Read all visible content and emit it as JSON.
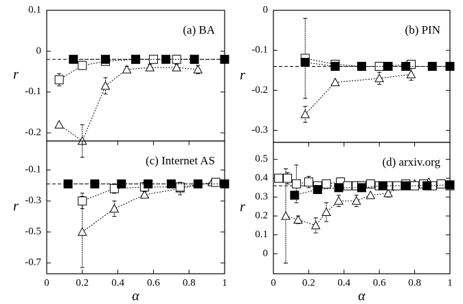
{
  "chart_data": [
    {
      "type": "scatter",
      "title": "(a) BA",
      "y_label": "r",
      "xlim": [
        0,
        1
      ],
      "ylim": [
        -0.22,
        0.1
      ],
      "yticks": [
        0.1,
        0,
        -0.1,
        -0.2
      ],
      "reference_line": -0.02,
      "series": [
        {
          "marker": "open-triangle",
          "x": [
            0.07,
            0.2,
            0.33,
            0.45,
            0.58,
            0.73,
            0.85
          ],
          "values": [
            -0.18,
            -0.22,
            -0.085,
            -0.045,
            -0.04,
            -0.04,
            -0.045
          ],
          "errors": [
            null,
            0.04,
            0.02,
            0.008,
            0.008,
            0.008,
            0.01
          ]
        },
        {
          "marker": "open-square",
          "x": [
            0.07,
            0.2,
            0.33,
            0.5,
            0.6,
            0.73,
            0.83
          ],
          "values": [
            -0.07,
            -0.035,
            -0.025,
            -0.02,
            -0.02,
            -0.02,
            -0.02
          ],
          "errors": [
            0.015,
            0.01,
            null,
            null,
            null,
            null,
            null
          ]
        },
        {
          "marker": "filled-square",
          "x": [
            0.15,
            0.33,
            0.5,
            0.67,
            0.83,
            1
          ],
          "values": [
            -0.02,
            -0.02,
            -0.02,
            -0.02,
            -0.02,
            -0.02
          ],
          "errors": [
            null,
            null,
            null,
            null,
            null,
            null
          ]
        }
      ]
    },
    {
      "type": "scatter",
      "title": "(b) PIN",
      "y_label": "r",
      "xlim": [
        0,
        1
      ],
      "ylim": [
        -0.33,
        0
      ],
      "yticks": [
        0,
        -0.1,
        -0.2,
        -0.3
      ],
      "reference_line": -0.14,
      "series": [
        {
          "marker": "open-triangle",
          "x": [
            0.18,
            0.35,
            0.6,
            0.78
          ],
          "values": [
            -0.26,
            -0.18,
            -0.17,
            -0.16
          ],
          "errors": [
            0.02,
            null,
            0.015,
            0.015
          ]
        },
        {
          "marker": "open-square",
          "x": [
            0.18,
            0.35,
            0.5,
            0.6,
            0.78
          ],
          "values": [
            -0.12,
            -0.135,
            -0.14,
            -0.14,
            -0.135
          ],
          "errors": [
            0.1,
            0.01,
            null,
            null,
            null
          ]
        },
        {
          "marker": "filled-square",
          "x": [
            0.18,
            0.35,
            0.5,
            0.65,
            0.75,
            0.9,
            1
          ],
          "values": [
            -0.13,
            -0.14,
            -0.14,
            -0.14,
            -0.14,
            -0.14,
            -0.14
          ],
          "errors": [
            null,
            null,
            null,
            null,
            null,
            null,
            null
          ]
        }
      ]
    },
    {
      "type": "scatter",
      "title": "(c) Internet AS",
      "x_label": "α",
      "y_label": "r",
      "xlim": [
        0,
        1
      ],
      "ylim": [
        -0.77,
        0.087
      ],
      "xticks": [
        0,
        0.2,
        0.4,
        0.6,
        0.8,
        1
      ],
      "yticks": [
        -0.1,
        -0.3,
        -0.5,
        -0.7
      ],
      "reference_line": -0.19,
      "series": [
        {
          "marker": "open-triangle",
          "x": [
            0.2,
            0.38,
            0.55,
            0.75,
            0.93
          ],
          "values": [
            -0.5,
            -0.35,
            -0.26,
            -0.22,
            -0.18
          ],
          "errors": [
            0.23,
            0.05,
            0.02,
            0.04,
            null
          ]
        },
        {
          "marker": "open-square",
          "x": [
            0.2,
            0.38,
            0.55,
            0.75,
            0.95
          ],
          "values": [
            -0.3,
            -0.22,
            -0.21,
            -0.21,
            -0.18
          ],
          "errors": [
            0.05,
            0.03,
            0.03,
            0.02,
            null
          ]
        },
        {
          "marker": "filled-square",
          "x": [
            0.12,
            0.27,
            0.42,
            0.57,
            0.7,
            0.85,
            1
          ],
          "values": [
            -0.19,
            -0.19,
            -0.19,
            -0.19,
            -0.19,
            -0.19,
            -0.19
          ],
          "errors": [
            null,
            null,
            null,
            null,
            null,
            null,
            null
          ]
        }
      ]
    },
    {
      "type": "scatter",
      "title": "(d) arxiv.org",
      "x_label": "α",
      "y_label": "r",
      "xlim": [
        0,
        1
      ],
      "ylim": [
        -0.106,
        0.59
      ],
      "xticks": [
        0,
        0.2,
        0.4,
        0.6,
        0.8,
        1
      ],
      "yticks": [
        0.5,
        0.4,
        0.3,
        0.2,
        0.1,
        0
      ],
      "reference_line": 0.36,
      "series": [
        {
          "marker": "open-triangle",
          "x": [
            0.07,
            0.14,
            0.24,
            0.3,
            0.37,
            0.47,
            0.55,
            0.65,
            0.73,
            0.8,
            0.88,
            0.95
          ],
          "values": [
            0.2,
            0.18,
            0.15,
            0.22,
            0.28,
            0.28,
            0.31,
            0.32,
            0.36,
            0.37,
            0.38,
            0.37
          ],
          "errors": [
            0.25,
            0.02,
            0.04,
            0.05,
            0.03,
            0.03,
            null,
            0.02,
            null,
            null,
            null,
            null
          ]
        },
        {
          "marker": "open-square",
          "x": [
            0.03,
            0.08,
            0.13,
            0.2,
            0.25,
            0.3,
            0.38,
            0.42,
            0.47,
            0.5,
            0.55,
            0.6,
            0.65,
            0.7,
            0.75,
            0.8,
            0.85,
            0.9,
            0.95,
            1
          ],
          "values": [
            0.4,
            0.4,
            0.37,
            0.38,
            0.36,
            0.37,
            0.38,
            0.36,
            0.36,
            0.36,
            0.37,
            0.36,
            0.36,
            0.36,
            0.37,
            0.36,
            0.37,
            0.36,
            0.37,
            0.36
          ],
          "errors": [
            null,
            0.03,
            0.1,
            0.03,
            null,
            null,
            null,
            null,
            null,
            null,
            null,
            null,
            null,
            null,
            null,
            null,
            null,
            null,
            null,
            null
          ]
        },
        {
          "marker": "filled-square",
          "x": [
            0.12,
            0.25,
            0.37,
            0.5,
            0.62,
            0.75,
            0.87,
            1
          ],
          "values": [
            0.31,
            0.34,
            0.35,
            0.35,
            0.36,
            0.36,
            0.36,
            0.365
          ],
          "errors": [
            null,
            null,
            null,
            null,
            null,
            null,
            null,
            null
          ]
        }
      ]
    }
  ]
}
